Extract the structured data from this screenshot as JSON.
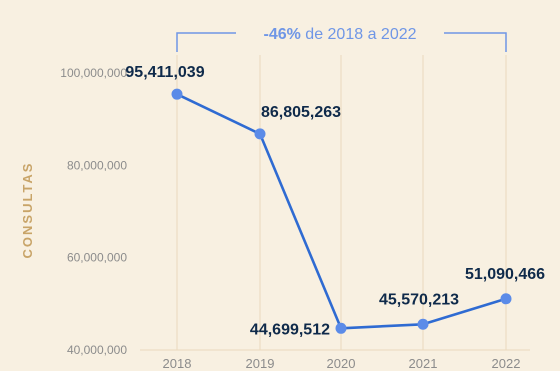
{
  "chart_data": {
    "type": "line",
    "x": [
      "2018",
      "2019",
      "2020",
      "2021",
      "2022"
    ],
    "series": [
      {
        "values": [
          95411039,
          86805263,
          44699512,
          45570213,
          51090466
        ],
        "value_labels": [
          "95,411,039",
          "86,805,263",
          "44,699,512",
          "45,570,213",
          "51,090,466"
        ]
      }
    ],
    "ylabel": "CONSULTAS",
    "ylim": [
      40000000,
      100000000
    ],
    "yticks": [
      40000000,
      60000000,
      80000000,
      100000000
    ],
    "ytick_labels": [
      "40,000,000",
      "60,000,000",
      "80,000,000",
      "100,000,000"
    ],
    "grid": "vertical",
    "annotation": {
      "highlight": "-46%",
      "text": " de 2018 a 2022"
    }
  },
  "colors": {
    "background": "#f8f0e1",
    "line": "#2f6bd2",
    "marker": "#5b8be8",
    "annotation_accent": "#6f96e6",
    "grid": "#ead9bd",
    "ylabel": "#c8a468",
    "value_label": "#0f2a4a",
    "tick_label": "#8c8c8c"
  }
}
